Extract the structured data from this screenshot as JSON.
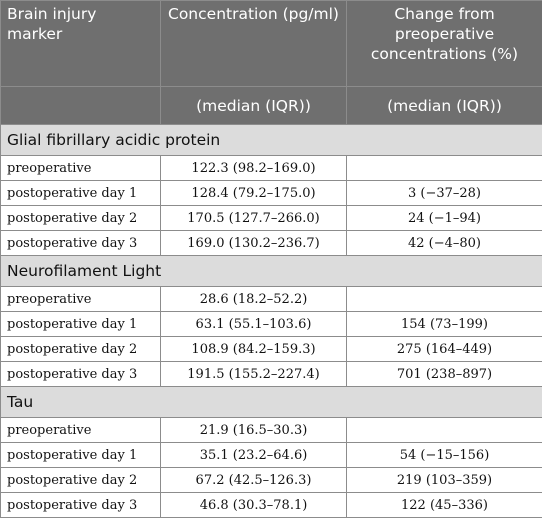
{
  "header": {
    "col1": "Brain injury marker",
    "col2": "Concentration (pg/ml)",
    "col3": "Change from preoperative concentrations (%)",
    "col2_sub": "(median (IQR))",
    "col3_sub": "(median (IQR))"
  },
  "groups": [
    {
      "name": "Glial fibrillary acidic protein",
      "rows": [
        {
          "label": "preoperative",
          "conc": "122.3 (98.2–169.0)",
          "change": ""
        },
        {
          "label": "postoperative day 1",
          "conc": "128.4 (79.2–175.0)",
          "change": "3 (−37–28)"
        },
        {
          "label": "postoperative day 2",
          "conc": "170.5 (127.7–266.0)",
          "change": "24 (−1–94)"
        },
        {
          "label": "postoperative day 3",
          "conc": "169.0 (130.2–236.7)",
          "change": "42 (−4–80)"
        }
      ]
    },
    {
      "name": "Neurofilament Light",
      "rows": [
        {
          "label": "preoperative",
          "conc": "28.6 (18.2–52.2)",
          "change": ""
        },
        {
          "label": "postoperative day 1",
          "conc": "63.1 (55.1–103.6)",
          "change": "154 (73–199)"
        },
        {
          "label": "postoperative day 2",
          "conc": "108.9 (84.2–159.3)",
          "change": "275 (164–449)"
        },
        {
          "label": "postoperative day 3",
          "conc": "191.5 (155.2–227.4)",
          "change": "701 (238–897)"
        }
      ]
    },
    {
      "name": "Tau",
      "rows": [
        {
          "label": "preoperative",
          "conc": "21.9 (16.5–30.3)",
          "change": ""
        },
        {
          "label": "postoperative day 1",
          "conc": "35.1 (23.2–64.6)",
          "change": "54 (−15–156)"
        },
        {
          "label": "postoperative day 2",
          "conc": "67.2 (42.5–126.3)",
          "change": "219 (103–359)"
        },
        {
          "label": "postoperative day 3",
          "conc": "46.8 (30.3–78.1)",
          "change": "122 (45–336)"
        }
      ]
    }
  ]
}
